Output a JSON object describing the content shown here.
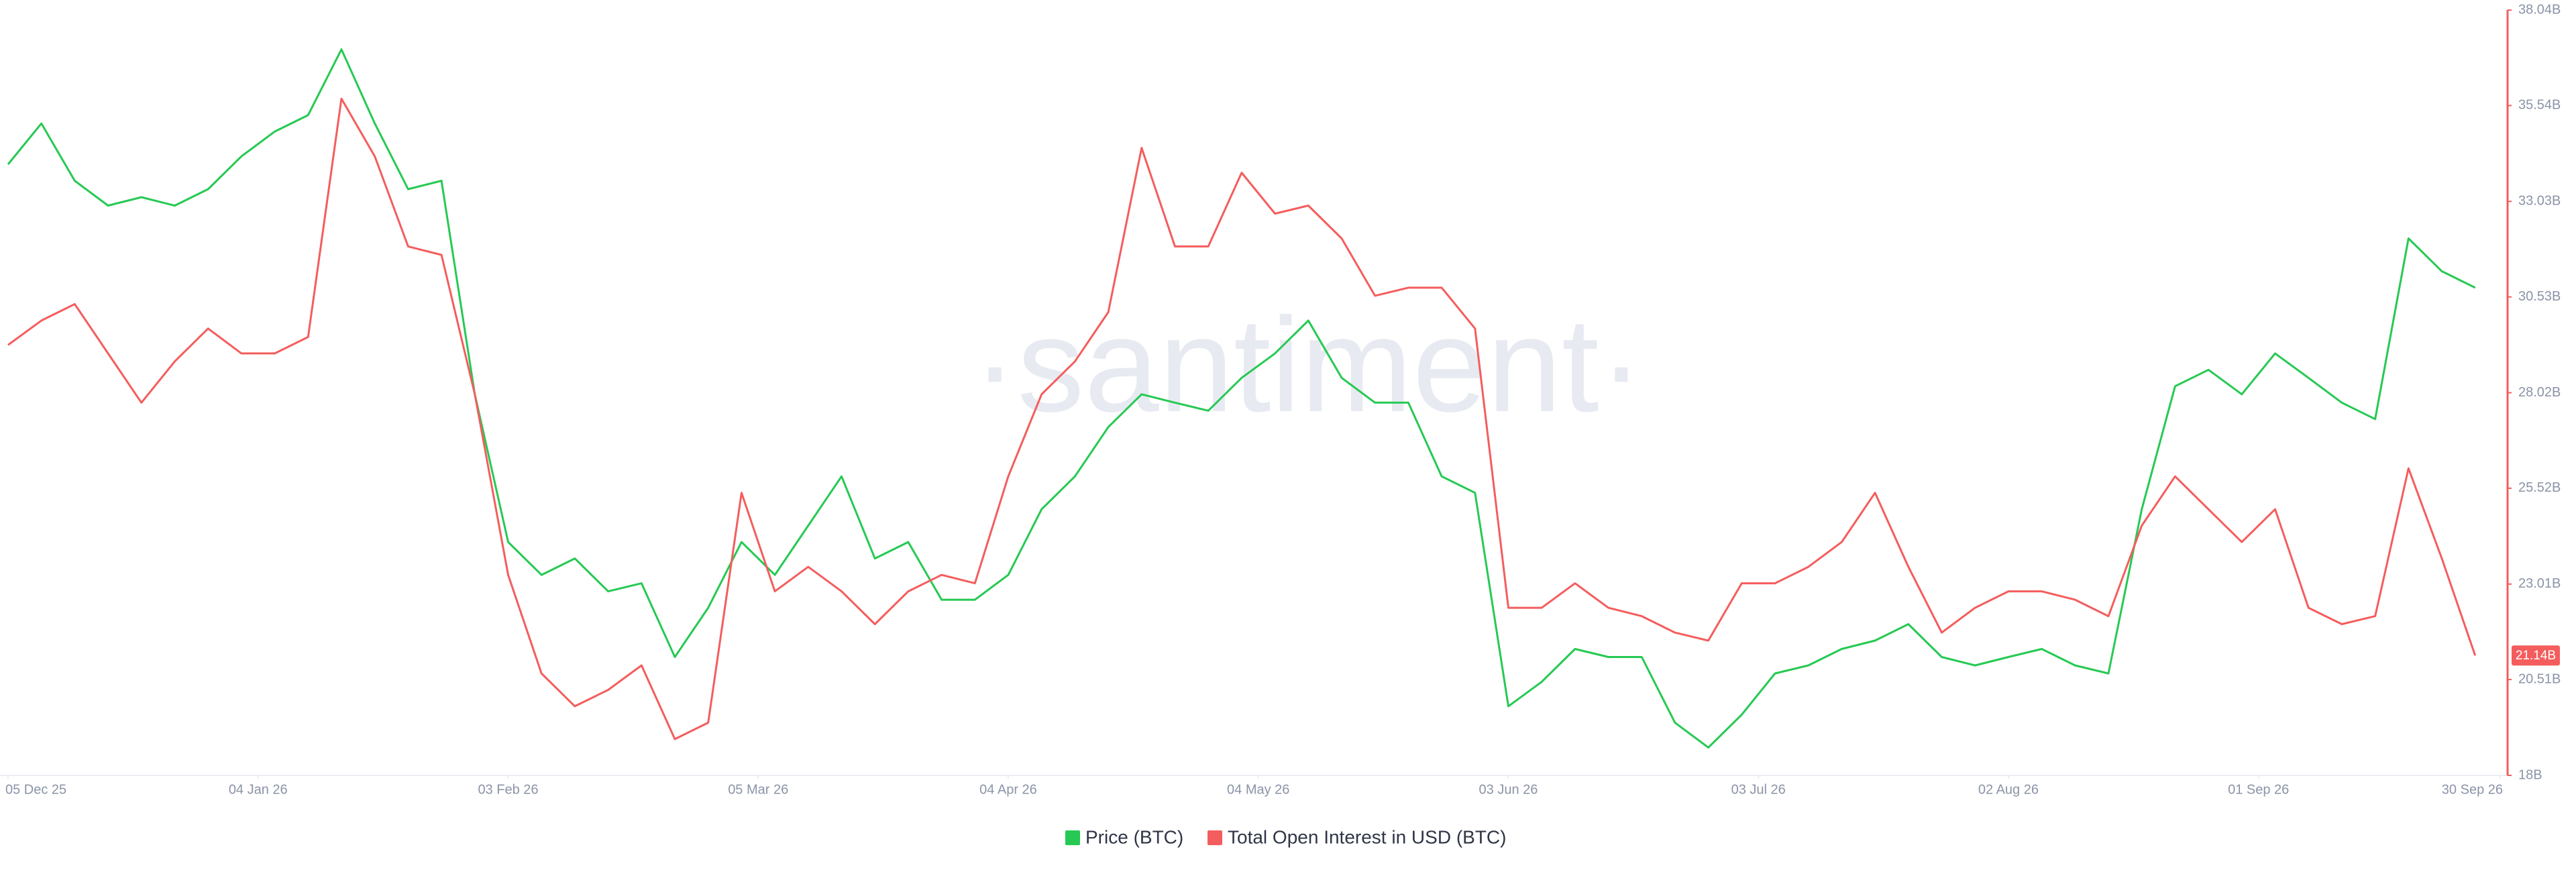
{
  "chart_data": {
    "type": "line",
    "watermark": "·santiment·",
    "x": [
      "2025-12-05",
      "2025-12-09",
      "2025-12-13",
      "2025-12-17",
      "2025-12-21",
      "2025-12-25",
      "2025-12-29",
      "2026-01-02",
      "2026-01-06",
      "2026-01-10",
      "2026-01-14",
      "2026-01-18",
      "2026-01-22",
      "2026-01-26",
      "2026-01-30",
      "2026-02-03",
      "2026-02-07",
      "2026-02-11",
      "2026-02-15",
      "2026-02-19",
      "2026-02-23",
      "2026-02-27",
      "2026-03-03",
      "2026-03-07",
      "2026-03-11",
      "2026-03-15",
      "2026-03-19",
      "2026-03-23",
      "2026-03-27",
      "2026-03-31",
      "2026-04-04",
      "2026-04-08",
      "2026-04-12",
      "2026-04-16",
      "2026-04-20",
      "2026-04-24",
      "2026-04-28",
      "2026-05-02",
      "2026-05-06",
      "2026-05-10",
      "2026-05-14",
      "2026-05-18",
      "2026-05-22",
      "2026-05-26",
      "2026-05-30",
      "2026-06-03",
      "2026-06-07",
      "2026-06-11",
      "2026-06-15",
      "2026-06-19",
      "2026-06-23",
      "2026-06-27",
      "2026-07-01",
      "2026-07-05",
      "2026-07-09",
      "2026-07-13",
      "2026-07-17",
      "2026-07-21",
      "2026-07-25",
      "2026-07-29",
      "2026-08-02",
      "2026-08-06",
      "2026-08-10",
      "2026-08-14",
      "2026-08-18",
      "2026-08-22",
      "2026-08-26",
      "2026-08-30",
      "2026-09-03",
      "2026-09-07",
      "2026-09-11",
      "2026-09-15",
      "2026-09-19",
      "2026-09-23",
      "2026-09-27"
    ],
    "series": [
      {
        "name": "Price (BTC)",
        "color": "#26c953",
        "axis": "y2",
        "values": [
          34.0,
          35.07,
          33.57,
          32.92,
          33.14,
          32.92,
          33.35,
          34.21,
          34.86,
          35.29,
          37.01,
          35.07,
          33.35,
          33.57,
          27.98,
          24.11,
          23.25,
          23.68,
          22.82,
          23.03,
          21.1,
          22.39,
          24.11,
          23.25,
          24.54,
          25.83,
          23.68,
          24.11,
          22.6,
          22.6,
          23.25,
          24.97,
          25.83,
          27.12,
          27.98,
          27.76,
          27.55,
          28.41,
          29.05,
          29.91,
          28.41,
          27.76,
          27.76,
          25.83,
          25.4,
          19.81,
          20.45,
          21.31,
          21.1,
          21.1,
          19.38,
          18.73,
          19.59,
          20.67,
          20.88,
          21.31,
          21.53,
          21.96,
          21.1,
          20.88,
          21.1,
          21.31,
          20.88,
          20.67,
          24.97,
          28.19,
          28.62,
          27.98,
          29.05,
          28.41,
          27.76,
          27.33,
          32.06,
          31.2,
          30.77
        ]
      },
      {
        "name": "Total Open Interest in USD (BTC)",
        "color": "#f45d5d",
        "axis": "y2",
        "values": [
          29.27,
          29.91,
          30.34,
          29.05,
          27.76,
          28.84,
          29.7,
          29.05,
          29.05,
          29.48,
          35.72,
          34.21,
          31.85,
          31.63,
          27.98,
          23.25,
          20.67,
          19.81,
          20.24,
          20.88,
          18.95,
          19.38,
          25.4,
          22.82,
          23.46,
          22.82,
          21.96,
          22.82,
          23.25,
          23.03,
          25.83,
          27.98,
          28.84,
          30.13,
          34.43,
          31.85,
          31.85,
          33.78,
          32.71,
          32.92,
          32.06,
          30.56,
          30.77,
          30.77,
          29.7,
          22.39,
          22.39,
          23.03,
          22.39,
          22.17,
          21.74,
          21.53,
          23.03,
          23.03,
          23.46,
          24.11,
          25.4,
          23.46,
          21.74,
          22.39,
          22.82,
          22.82,
          22.6,
          22.17,
          24.54,
          25.83,
          24.97,
          24.11,
          24.97,
          22.39,
          21.96,
          22.17,
          26.04,
          23.68,
          21.14
        ]
      }
    ],
    "current_value": {
      "value": 21.14,
      "label": "21.14B"
    },
    "xlim": [
      "2025-12-05",
      "2026-09-30"
    ],
    "xticks": [
      {
        "value": "2025-12-05",
        "label": "05 Dec 25"
      },
      {
        "value": "2026-01-04",
        "label": "04 Jan 26"
      },
      {
        "value": "2026-02-03",
        "label": "03 Feb 26"
      },
      {
        "value": "2026-03-05",
        "label": "05 Mar 26"
      },
      {
        "value": "2026-04-04",
        "label": "04 Apr 26"
      },
      {
        "value": "2026-05-04",
        "label": "04 May 26"
      },
      {
        "value": "2026-06-03",
        "label": "03 Jun 26"
      },
      {
        "value": "2026-07-03",
        "label": "03 Jul 26"
      },
      {
        "value": "2026-08-02",
        "label": "02 Aug 26"
      },
      {
        "value": "2026-09-01",
        "label": "01 Sep 26"
      },
      {
        "value": "2026-09-30",
        "label": "30 Sep 26"
      }
    ],
    "y2lim": [
      18,
      38.04
    ],
    "y2ticks": [
      {
        "value": 18,
        "label": "18B"
      },
      {
        "value": 20.51,
        "label": "20.51B"
      },
      {
        "value": 23.01,
        "label": "23.01B"
      },
      {
        "value": 25.52,
        "label": "25.52B"
      },
      {
        "value": 28.02,
        "label": "28.02B"
      },
      {
        "value": 30.53,
        "label": "30.53B"
      },
      {
        "value": 33.03,
        "label": "33.03B"
      },
      {
        "value": 35.54,
        "label": "35.54B"
      },
      {
        "value": 38.04,
        "label": "38.04B"
      }
    ]
  }
}
